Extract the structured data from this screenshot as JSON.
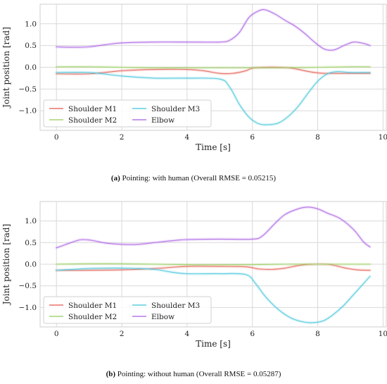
{
  "chart_data": [
    {
      "type": "line",
      "caption_tag": "(a)",
      "caption_text": "Pointing: with human (Overall RMSE = 0.05215)",
      "xlabel": "Time [s]",
      "ylabel": "Joint position [rad]",
      "xlim": [
        -0.5,
        10.1
      ],
      "ylim": [
        -1.45,
        1.45
      ],
      "xticks": [
        0,
        2,
        4,
        6,
        8,
        10
      ],
      "yticks": [
        -1.0,
        -0.5,
        0.0,
        0.5,
        1.0
      ],
      "xtick_labels": [
        "0",
        "2",
        "4",
        "6",
        "8",
        "10"
      ],
      "ytick_labels": [
        "−1.0",
        "−0.5",
        "0.0",
        "0.5",
        "1.0"
      ],
      "grid": true,
      "legend_position": "lower-left",
      "series": [
        {
          "name": "Shoulder M1",
          "color": "#e8746a",
          "x": [
            0,
            1,
            2,
            3,
            4,
            4.5,
            5,
            5.4,
            5.8,
            6,
            6.4,
            6.8,
            7.2,
            7.6,
            7.9,
            8.2,
            8.6,
            9.0,
            9.6
          ],
          "y": [
            -0.15,
            -0.15,
            -0.08,
            -0.05,
            -0.05,
            -0.08,
            -0.14,
            -0.14,
            -0.08,
            -0.02,
            0.0,
            0.0,
            -0.02,
            -0.08,
            -0.12,
            -0.14,
            -0.14,
            -0.14,
            -0.14
          ]
        },
        {
          "name": "Shoulder M2",
          "color": "#a6d373",
          "x": [
            0,
            1,
            2,
            3,
            4,
            5,
            6,
            7,
            8,
            9,
            9.6
          ],
          "y": [
            0.01,
            0.01,
            0.0,
            -0.01,
            -0.01,
            -0.01,
            -0.01,
            -0.01,
            0.0,
            0.01,
            0.01
          ]
        },
        {
          "name": "Shoulder M3",
          "color": "#5ccde0",
          "x": [
            0,
            1,
            2,
            3,
            4,
            5,
            5.3,
            5.6,
            5.9,
            6.2,
            6.5,
            6.8,
            7.1,
            7.4,
            7.7,
            8.0,
            8.3,
            8.6,
            9.0,
            9.6
          ],
          "y": [
            -0.12,
            -0.12,
            -0.2,
            -0.25,
            -0.25,
            -0.27,
            -0.45,
            -0.85,
            -1.15,
            -1.3,
            -1.32,
            -1.28,
            -1.13,
            -0.9,
            -0.6,
            -0.32,
            -0.15,
            -0.1,
            -0.12,
            -0.12
          ]
        },
        {
          "name": "Elbow",
          "color": "#b678e8",
          "x": [
            0,
            0.5,
            1,
            1.5,
            2,
            3,
            4,
            5,
            5.3,
            5.6,
            5.9,
            6.2,
            6.4,
            6.7,
            7.0,
            7.3,
            7.6,
            7.9,
            8.2,
            8.5,
            8.8,
            9.1,
            9.4,
            9.6
          ],
          "y": [
            0.47,
            0.46,
            0.47,
            0.52,
            0.56,
            0.58,
            0.58,
            0.58,
            0.62,
            0.8,
            1.15,
            1.3,
            1.32,
            1.22,
            1.08,
            0.95,
            0.78,
            0.58,
            0.42,
            0.4,
            0.5,
            0.58,
            0.55,
            0.5
          ]
        }
      ]
    },
    {
      "type": "line",
      "caption_tag": "(b)",
      "caption_text": "Pointing: without human (Overall RMSE = 0.05287)",
      "xlabel": "Time [s]",
      "ylabel": "Joint position [rad]",
      "xlim": [
        -0.5,
        10.1
      ],
      "ylim": [
        -1.45,
        1.45
      ],
      "xticks": [
        0,
        2,
        4,
        6,
        8,
        10
      ],
      "yticks": [
        -1.0,
        -0.5,
        0.0,
        0.5,
        1.0
      ],
      "xtick_labels": [
        "0",
        "2",
        "4",
        "6",
        "8",
        "10"
      ],
      "ytick_labels": [
        "−1.0",
        "−0.5",
        "0.0",
        "0.5",
        "1.0"
      ],
      "grid": true,
      "legend_position": "lower-left",
      "series": [
        {
          "name": "Shoulder M1",
          "color": "#e8746a",
          "x": [
            0,
            1,
            2,
            3,
            4,
            5,
            5.8,
            6.2,
            6.6,
            7.0,
            7.5,
            8.0,
            8.4,
            8.8,
            9.2,
            9.6
          ],
          "y": [
            -0.14,
            -0.14,
            -0.13,
            -0.1,
            -0.05,
            -0.05,
            -0.06,
            -0.11,
            -0.12,
            -0.09,
            -0.02,
            0.0,
            -0.01,
            -0.08,
            -0.13,
            -0.14
          ]
        },
        {
          "name": "Shoulder M2",
          "color": "#a6d373",
          "x": [
            0,
            1,
            2,
            3,
            4,
            5,
            6,
            7,
            8,
            9,
            9.6
          ],
          "y": [
            0.0,
            0.01,
            0.01,
            0.0,
            -0.01,
            -0.01,
            -0.01,
            0.0,
            0.0,
            0.0,
            0.0
          ]
        },
        {
          "name": "Shoulder M3",
          "color": "#5ccde0",
          "x": [
            0,
            0.5,
            1,
            2,
            3,
            3.5,
            4,
            5,
            5.8,
            6.1,
            6.4,
            6.8,
            7.2,
            7.6,
            7.9,
            8.2,
            8.5,
            8.8,
            9.1,
            9.4,
            9.6
          ],
          "y": [
            -0.14,
            -0.12,
            -0.1,
            -0.09,
            -0.12,
            -0.18,
            -0.22,
            -0.22,
            -0.24,
            -0.45,
            -0.75,
            -1.05,
            -1.25,
            -1.34,
            -1.35,
            -1.3,
            -1.15,
            -0.95,
            -0.7,
            -0.45,
            -0.28
          ]
        },
        {
          "name": "Elbow",
          "color": "#b678e8",
          "x": [
            0,
            0.3,
            0.6,
            0.8,
            1.1,
            1.5,
            2,
            2.5,
            3,
            3.5,
            4,
            5,
            6,
            6.3,
            6.7,
            7.0,
            7.4,
            7.7,
            8.0,
            8.3,
            8.7,
            9.1,
            9.4,
            9.6
          ],
          "y": [
            0.38,
            0.46,
            0.54,
            0.57,
            0.55,
            0.49,
            0.46,
            0.46,
            0.5,
            0.54,
            0.57,
            0.58,
            0.58,
            0.65,
            0.95,
            1.15,
            1.28,
            1.32,
            1.28,
            1.18,
            1.05,
            0.8,
            0.52,
            0.4
          ]
        }
      ]
    }
  ]
}
